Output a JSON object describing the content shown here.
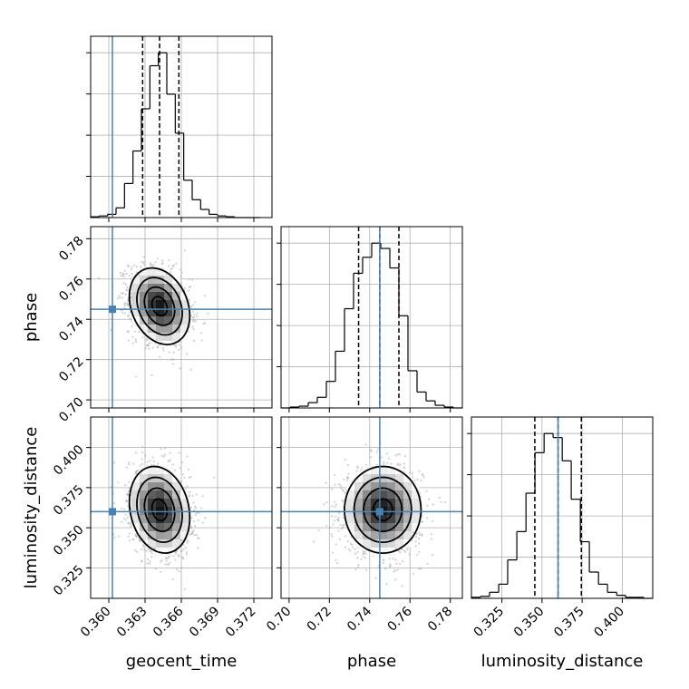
{
  "chart_data": {
    "type": "corner",
    "parameters": [
      {
        "name": "geocent_time",
        "label": "geocent_time",
        "range": [
          0.3585,
          0.3735
        ],
        "ticks": [
          0.36,
          0.363,
          0.366,
          0.369,
          0.372
        ],
        "tick_labels": [
          "0.360",
          "0.363",
          "0.366",
          "0.369",
          "0.372"
        ],
        "truth": 0.3603,
        "quantiles": [
          0.3628,
          0.3642,
          0.3658
        ],
        "hist_bin_edges": [
          0.3585,
          0.3592,
          0.3599,
          0.3606,
          0.3613,
          0.362,
          0.3627,
          0.3634,
          0.3641,
          0.3648,
          0.3655,
          0.3662,
          0.3669,
          0.3676,
          0.3683,
          0.369,
          0.3697,
          0.3704,
          0.3711,
          0.3718,
          0.3725
        ],
        "hist_counts": [
          1,
          2,
          4,
          12,
          42,
          82,
          134,
          187,
          203,
          152,
          104,
          46,
          22,
          10,
          4,
          2,
          1,
          0,
          0,
          0
        ]
      },
      {
        "name": "phase",
        "label": "phase",
        "range": [
          0.696,
          0.786
        ],
        "ticks": [
          0.7,
          0.72,
          0.74,
          0.76,
          0.78
        ],
        "tick_labels": [
          "0.70",
          "0.72",
          "0.74",
          "0.76",
          "0.78"
        ],
        "truth": 0.745,
        "quantiles": [
          0.7345,
          0.745,
          0.7545
        ],
        "hist_bin_edges": [
          0.696,
          0.7005,
          0.705,
          0.7095,
          0.714,
          0.7185,
          0.723,
          0.7275,
          0.732,
          0.7365,
          0.741,
          0.7455,
          0.75,
          0.7545,
          0.759,
          0.7635,
          0.768,
          0.7725,
          0.777,
          0.7815,
          0.786
        ],
        "hist_counts": [
          0,
          1,
          2,
          6,
          12,
          30,
          64,
          112,
          152,
          170,
          186,
          180,
          158,
          104,
          42,
          18,
          8,
          3,
          1,
          0
        ]
      },
      {
        "name": "luminosity_distance",
        "label": "luminosity_distance",
        "range": [
          0.306,
          0.419
        ],
        "ticks": [
          0.325,
          0.35,
          0.375,
          0.4
        ],
        "tick_labels": [
          "0.325",
          "0.350",
          "0.375",
          "0.400"
        ],
        "truth": 0.36,
        "quantiles": [
          0.3455,
          0.36,
          0.3745
        ],
        "hist_bin_edges": [
          0.306,
          0.3117,
          0.3173,
          0.323,
          0.3286,
          0.3343,
          0.34,
          0.3456,
          0.3513,
          0.3569,
          0.3626,
          0.3682,
          0.3739,
          0.3795,
          0.3852,
          0.3908,
          0.3965,
          0.4021,
          0.4078,
          0.4134,
          0.419
        ],
        "hist_counts": [
          1,
          2,
          6,
          14,
          38,
          66,
          104,
          144,
          163,
          159,
          136,
          98,
          56,
          26,
          14,
          6,
          3,
          1,
          1,
          0
        ]
      }
    ],
    "pairs": [
      {
        "x": "geocent_time",
        "y": "phase",
        "center": [
          0.3642,
          0.7465
        ],
        "sd": [
          0.00125,
          0.0095
        ],
        "rho": -0.25
      },
      {
        "x": "geocent_time",
        "y": "luminosity_distance",
        "center": [
          0.3642,
          0.3612
        ],
        "sd": [
          0.00125,
          0.0135
        ],
        "rho": -0.18
      },
      {
        "x": "phase",
        "y": "luminosity_distance",
        "center": [
          0.7465,
          0.3612
        ],
        "sd": [
          0.0095,
          0.0135
        ],
        "rho": 0.0
      }
    ],
    "colors": {
      "truth": "#4682b4",
      "hist": "#000000",
      "quantile": "#000000",
      "grid": "#b0b0b0"
    },
    "grid": true
  }
}
